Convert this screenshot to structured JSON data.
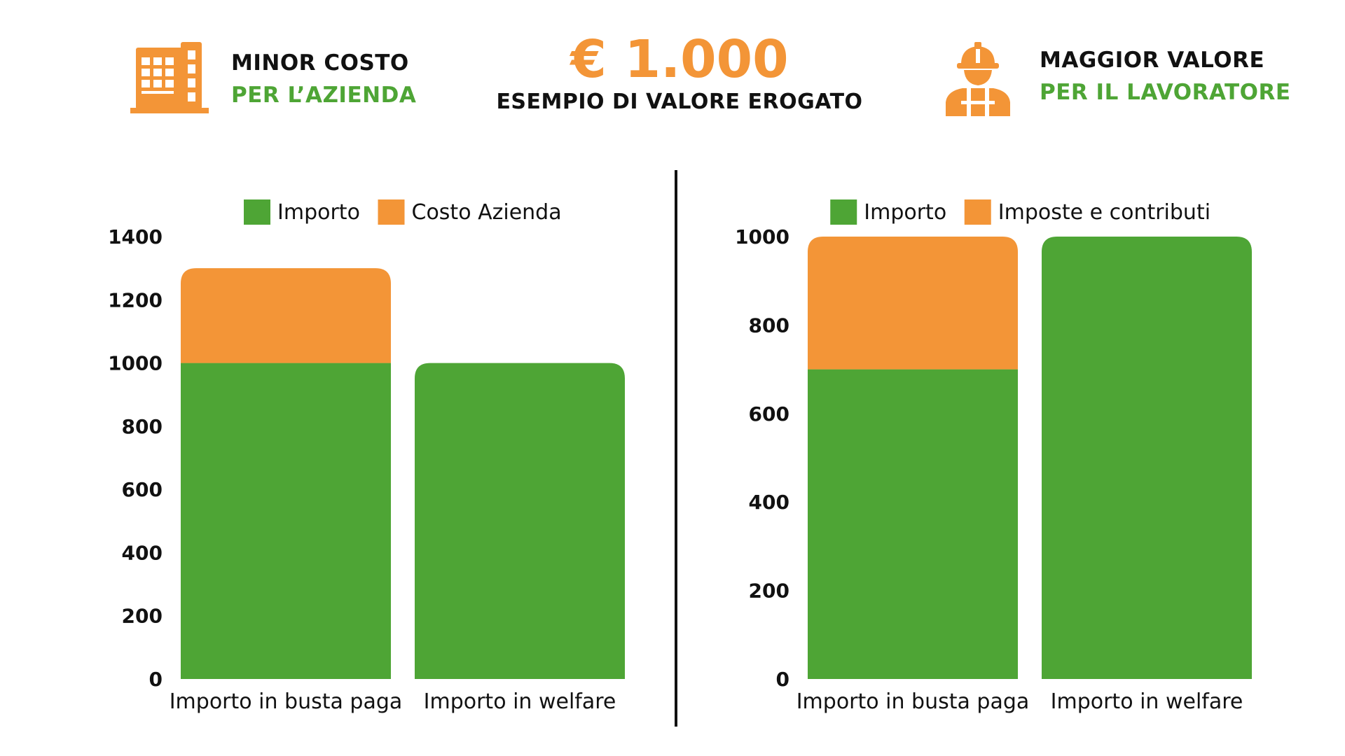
{
  "header": {
    "left": {
      "line1": "MINOR COSTO",
      "line2": "PER L’AZIENDA",
      "icon": "office-building-icon"
    },
    "center": {
      "amount": "€ 1.000",
      "caption": "ESEMPIO DI VALORE EROGATO"
    },
    "right": {
      "line1": "MAGGIOR VALORE",
      "line2": "PER IL LAVORATORE",
      "icon": "construction-worker-icon"
    }
  },
  "colors": {
    "green": "#4ea535",
    "orange": "#f39537",
    "text": "#111111",
    "background": "#ffffff"
  },
  "chart_data": [
    {
      "type": "bar",
      "stacked": true,
      "categories": [
        "Importo in busta paga",
        "Importo in welfare"
      ],
      "series": [
        {
          "name": "Importo",
          "color": "#4ea535",
          "values": [
            1000,
            1000
          ]
        },
        {
          "name": "Costo Azienda",
          "color": "#f39537",
          "values": [
            300,
            0
          ]
        }
      ],
      "ylim": [
        0,
        1400
      ],
      "yticks": [
        0,
        200,
        400,
        600,
        800,
        1000,
        1200,
        1400
      ],
      "grid": false,
      "legend": "top-center"
    },
    {
      "type": "bar",
      "stacked": true,
      "categories": [
        "Importo in busta paga",
        "Importo in welfare"
      ],
      "series": [
        {
          "name": "Importo",
          "color": "#4ea535",
          "values": [
            700,
            1000
          ]
        },
        {
          "name": "Imposte e contributi",
          "color": "#f39537",
          "values": [
            300,
            0
          ]
        }
      ],
      "ylim": [
        0,
        1000
      ],
      "yticks": [
        0,
        200,
        400,
        600,
        800,
        1000
      ],
      "grid": false,
      "legend": "top-center"
    }
  ]
}
